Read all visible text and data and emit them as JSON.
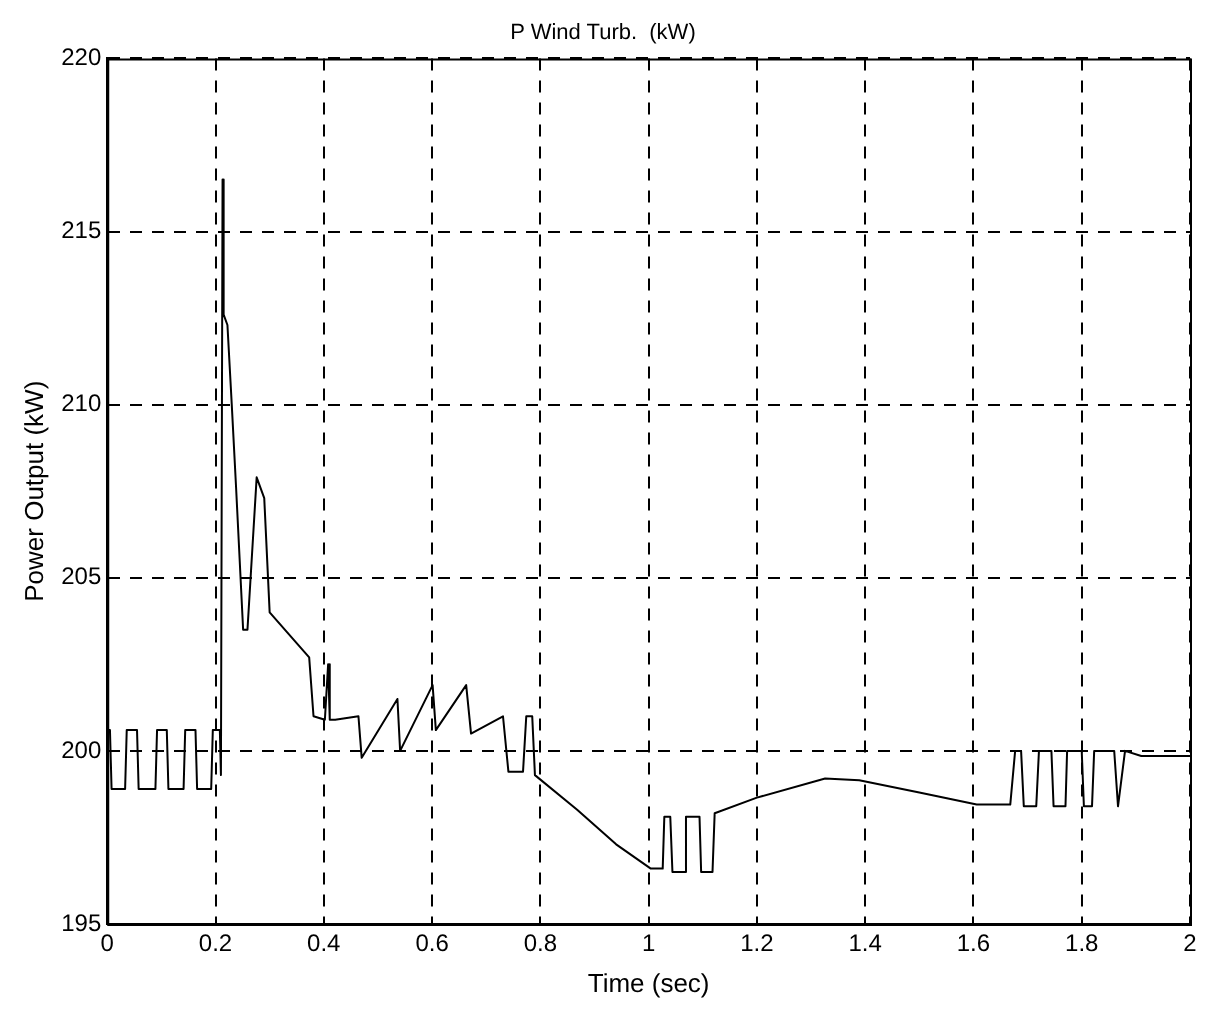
{
  "chart_data": {
    "type": "line",
    "title": "P Wind Turb.  (kW)",
    "xlabel": "Time (sec)",
    "ylabel": "Power Output (kW)",
    "xlim": [
      0,
      2
    ],
    "xticks": [
      0,
      0.2,
      0.4,
      0.6,
      0.8,
      1,
      1.2,
      1.4,
      1.6,
      1.8,
      2
    ],
    "ylim": [
      195,
      220
    ],
    "yticks": [
      195,
      200,
      205,
      210,
      215,
      220
    ],
    "grid": true,
    "legend": false,
    "marker": "none",
    "line_style": "solid",
    "series": [
      {
        "color": "#000000",
        "x": [
          0,
          0.005,
          0.008,
          0.033,
          0.036,
          0.055,
          0.058,
          0.089,
          0.092,
          0.11,
          0.113,
          0.141,
          0.144,
          0.163,
          0.166,
          0.192,
          0.195,
          0.208,
          0.21,
          0.213,
          0.215,
          0.222,
          0.23,
          0.238,
          0.251,
          0.259,
          0.276,
          0.29,
          0.3,
          0.373,
          0.381,
          0.402,
          0.408,
          0.411,
          0.421,
          0.464,
          0.47,
          0.536,
          0.541,
          0.601,
          0.607,
          0.663,
          0.672,
          0.731,
          0.741,
          0.768,
          0.774,
          0.785,
          0.79,
          0.868,
          0.94,
          1.004,
          1.026,
          1.029,
          1.04,
          1.044,
          1.066,
          1.069,
          1.094,
          1.097,
          1.118,
          1.122,
          1.2,
          1.326,
          1.389,
          1.5,
          1.606,
          1.668,
          1.677,
          1.688,
          1.693,
          1.716,
          1.721,
          1.744,
          1.748,
          1.77,
          1.773,
          1.8,
          1.804,
          1.819,
          1.823,
          1.86,
          1.867,
          1.88,
          1.91,
          2
        ],
        "values": [
          200.6,
          200.6,
          198.9,
          198.9,
          200.6,
          200.6,
          198.9,
          198.9,
          200.6,
          200.6,
          198.9,
          198.9,
          200.6,
          200.6,
          198.9,
          198.9,
          200.6,
          200.6,
          199.3,
          216.5,
          212.6,
          212.3,
          210,
          207.6,
          203.5,
          203.5,
          207.9,
          207.3,
          204,
          202.7,
          201,
          200.9,
          202.5,
          200.9,
          200.9,
          201,
          199.8,
          201.5,
          200,
          201.9,
          200.6,
          201.9,
          200.5,
          201,
          199.4,
          199.4,
          201,
          201,
          199.3,
          198.3,
          197.3,
          196.6,
          196.6,
          198.1,
          198.1,
          196.5,
          196.5,
          198.1,
          198.1,
          196.5,
          196.5,
          198.2,
          198.65,
          199.2,
          199.15,
          198.8,
          198.45,
          198.45,
          200,
          200,
          198.4,
          198.4,
          200,
          200,
          198.4,
          198.4,
          200,
          200,
          198.4,
          198.4,
          200,
          200,
          198.4,
          200,
          199.85,
          199.85
        ]
      }
    ]
  }
}
